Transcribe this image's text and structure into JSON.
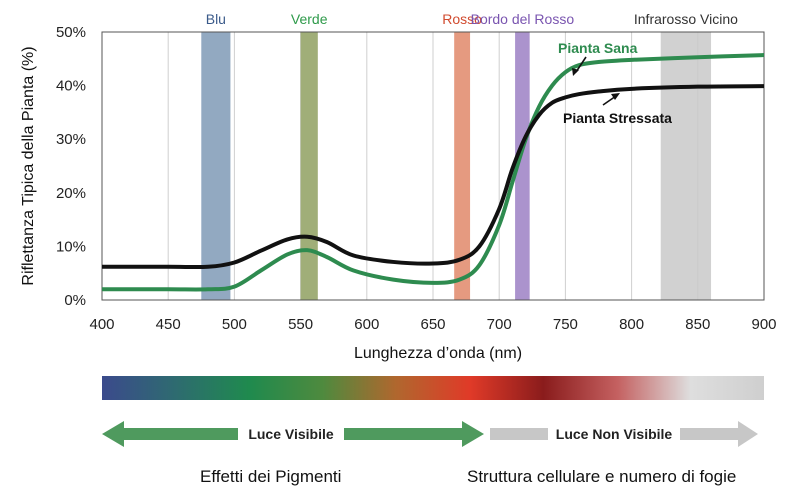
{
  "chart_data": {
    "type": "line",
    "xlabel": "Lunghezza d’onda (nm)",
    "ylabel": "Riflettanza Tipica della Pianta (%)",
    "xlim": [
      400,
      900
    ],
    "ylim": [
      0,
      50
    ],
    "xticks": [
      "400",
      "450",
      "500",
      "550",
      "600",
      "650",
      "700",
      "750",
      "800",
      "850",
      "900"
    ],
    "yticks": [
      "0%",
      "10%",
      "20%",
      "30%",
      "40%",
      "50%"
    ],
    "grid": "vertical",
    "bands": [
      {
        "label": "Blu",
        "from": 475,
        "to": 497,
        "color": "#7f9ab6",
        "label_color": "#3a5a8a"
      },
      {
        "label": "Verde",
        "from": 550,
        "to": 563,
        "color": "#8fa060",
        "label_color": "#2e9a4a"
      },
      {
        "label": "Rosso",
        "from": 666,
        "to": 678,
        "color": "#e0886a",
        "label_color": "#d14b2f"
      },
      {
        "label": "Bordo del Rosso",
        "from": 712,
        "to": 723,
        "color": "#9c80c4",
        "label_color": "#7a55b0"
      },
      {
        "label": "Infrarosso Vicino",
        "from": 822,
        "to": 860,
        "color": "#c9c9c9",
        "label_color": "#333333"
      }
    ],
    "series": [
      {
        "name": "Pianta Sana",
        "color": "#2e8b4f",
        "x": [
          400,
          450,
          480,
          500,
          520,
          540,
          555,
          570,
          590,
          620,
          650,
          670,
          685,
          700,
          710,
          720,
          730,
          740,
          750,
          760,
          775,
          800,
          850,
          900
        ],
        "y": [
          2.0,
          2.0,
          2.0,
          2.5,
          5.5,
          8.5,
          9.3,
          8.0,
          5.5,
          3.8,
          3.2,
          3.8,
          6.5,
          14.0,
          22.0,
          30.0,
          36.0,
          40.0,
          42.5,
          43.8,
          44.4,
          44.8,
          45.3,
          45.7
        ]
      },
      {
        "name": "Pianta Stressata",
        "color": "#111111",
        "x": [
          400,
          450,
          480,
          500,
          520,
          540,
          555,
          570,
          590,
          620,
          650,
          670,
          685,
          700,
          710,
          720,
          730,
          740,
          750,
          760,
          775,
          800,
          850,
          900
        ],
        "y": [
          6.2,
          6.2,
          6.2,
          7.0,
          9.2,
          11.3,
          11.8,
          10.8,
          8.3,
          7.1,
          6.8,
          7.5,
          10.0,
          17.0,
          24.5,
          30.5,
          34.5,
          36.8,
          37.8,
          38.4,
          38.9,
          39.4,
          39.8,
          39.9
        ]
      }
    ],
    "annotations": [
      "Pianta Sana",
      "Pianta Stressata"
    ]
  },
  "spectrum": {
    "colors": [
      "#3b4a8c",
      "#2e6b70",
      "#1f8a4e",
      "#4e8a3e",
      "#b0672e",
      "#e03a28",
      "#8a1c1c",
      "#c46060",
      "#dedede",
      "#cfcfcf"
    ]
  },
  "arrows": {
    "visible_label": "Luce Visibile",
    "nonvisible_label": "Luce Non Visibile",
    "visible_color": "#4f9a5e",
    "nonvisible_color": "#c7c7c7"
  },
  "footer": {
    "left": "Effetti dei Pigmenti",
    "right": "Struttura cellulare e numero di fogie"
  }
}
